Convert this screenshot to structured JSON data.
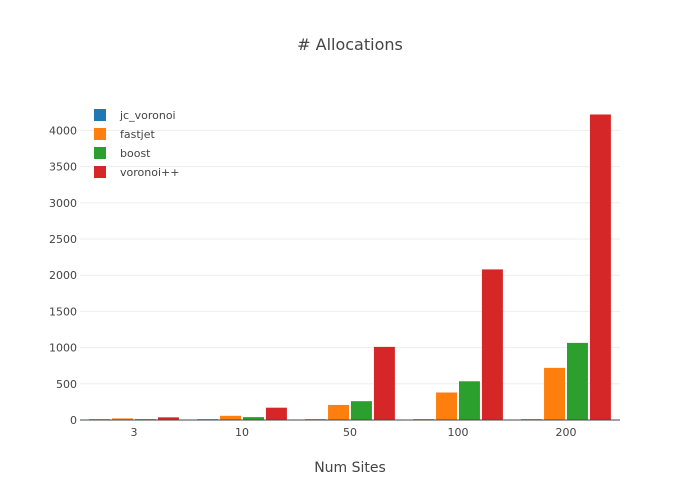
{
  "chart_data": {
    "type": "bar",
    "title": "# Allocations",
    "xlabel": "Num Sites",
    "ylabel": "",
    "categories": [
      "3",
      "10",
      "50",
      "100",
      "200"
    ],
    "yticks": [
      0,
      500,
      1000,
      1500,
      2000,
      2500,
      3000,
      3500,
      4000
    ],
    "ylim": [
      0,
      4420
    ],
    "grid": true,
    "legend_position": "top-left",
    "series": [
      {
        "name": "jc_voronoi",
        "color": "#1f77b4",
        "values": [
          1,
          1,
          1,
          1,
          1
        ]
      },
      {
        "name": "fastjet",
        "color": "#ff7f0e",
        "values": [
          22,
          58,
          208,
          380,
          720
        ]
      },
      {
        "name": "boost",
        "color": "#2ca02c",
        "values": [
          12,
          40,
          260,
          535,
          1065
        ]
      },
      {
        "name": "voronoi++",
        "color": "#d62728",
        "values": [
          37,
          170,
          1010,
          2080,
          4220
        ]
      }
    ]
  }
}
